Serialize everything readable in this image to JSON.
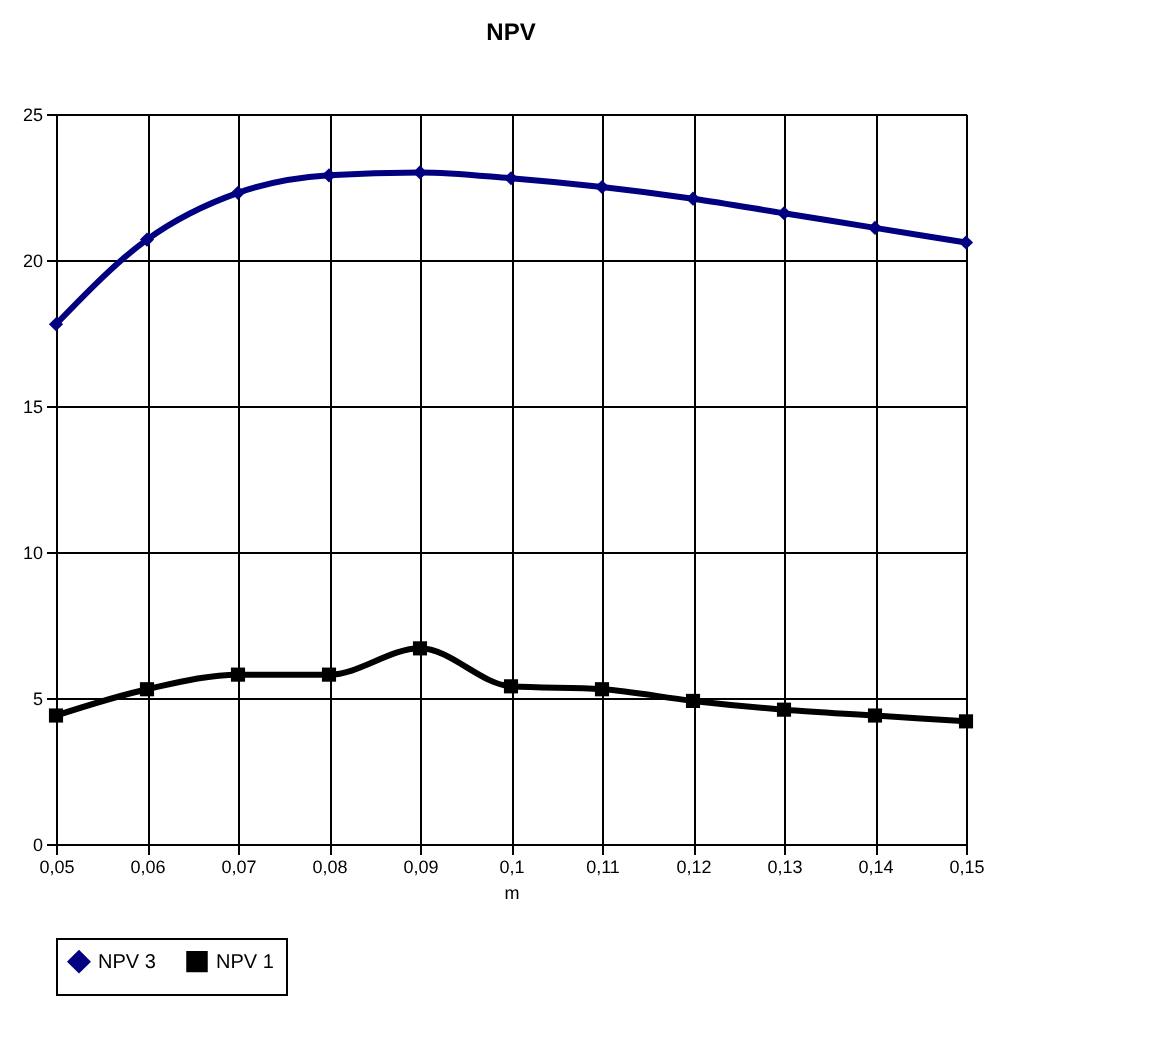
{
  "chart_data": {
    "type": "line",
    "title": "NPV",
    "xlabel": "m",
    "categories": [
      "0,05",
      "0,06",
      "0,07",
      "0,08",
      "0,09",
      "0,1",
      "0,11",
      "0,12",
      "0,13",
      "0,14",
      "0,15"
    ],
    "series": [
      {
        "name": "NPV 3",
        "color": "#000080",
        "marker": "diamond",
        "values": [
          17.8,
          20.7,
          22.3,
          22.9,
          23.0,
          22.8,
          22.5,
          22.1,
          21.6,
          21.1,
          20.6
        ]
      },
      {
        "name": "NPV 1",
        "color": "#000000",
        "marker": "square",
        "values": [
          4.4,
          5.3,
          5.8,
          5.8,
          6.7,
          5.4,
          5.3,
          4.9,
          4.6,
          4.4,
          4.2
        ]
      }
    ],
    "ylim": [
      0,
      25
    ],
    "yticks": [
      0,
      5,
      10,
      15,
      20,
      25
    ],
    "grid": true,
    "legend": "bottom"
  }
}
